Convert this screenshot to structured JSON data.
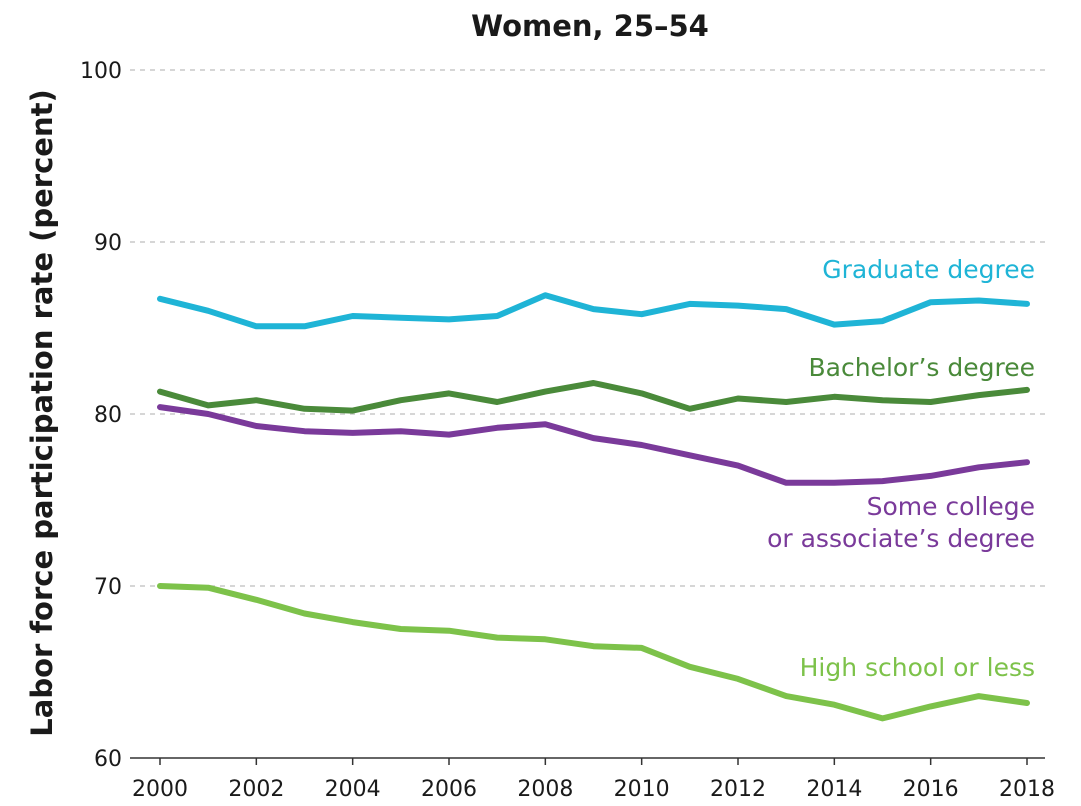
{
  "chart_data": {
    "type": "line",
    "title": "Women, 25–54",
    "xlabel": "",
    "ylabel": "Labor force participation rate (percent)",
    "ylim": [
      60,
      100
    ],
    "yticks": [
      "60",
      "70",
      "80",
      "90",
      "100"
    ],
    "xticks": [
      "2000",
      "2002",
      "2004",
      "2006",
      "2008",
      "2010",
      "2012",
      "2014",
      "2016",
      "2018"
    ],
    "grid": true,
    "x": [
      2000,
      2001,
      2002,
      2003,
      2004,
      2005,
      2006,
      2007,
      2008,
      2009,
      2010,
      2011,
      2012,
      2013,
      2014,
      2015,
      2016,
      2017,
      2018
    ],
    "series": [
      {
        "name": "Graduate degree",
        "color": "#1fb4d6",
        "values": [
          86.7,
          86.0,
          85.1,
          85.1,
          85.7,
          85.6,
          85.5,
          85.7,
          86.9,
          86.1,
          85.8,
          86.4,
          86.3,
          86.1,
          85.2,
          85.4,
          86.5,
          86.6,
          86.4
        ]
      },
      {
        "name": "Bachelor’s degree",
        "color": "#4a8a3a",
        "values": [
          81.3,
          80.5,
          80.8,
          80.3,
          80.2,
          80.8,
          81.2,
          80.7,
          81.3,
          81.8,
          81.2,
          80.3,
          80.9,
          80.7,
          81.0,
          80.8,
          80.7,
          81.1,
          81.4
        ]
      },
      {
        "name": "Some college or associate’s degree",
        "label_lines": [
          "Some college",
          "or associate’s degree"
        ],
        "color": "#7a3a9a",
        "values": [
          80.4,
          80.0,
          79.3,
          79.0,
          78.9,
          79.0,
          78.8,
          79.2,
          79.4,
          78.6,
          78.2,
          77.6,
          77.0,
          76.0,
          76.0,
          76.1,
          76.4,
          76.9,
          77.2
        ]
      },
      {
        "name": "High school or less",
        "color": "#7dc24a",
        "values": [
          70.0,
          69.9,
          69.2,
          68.4,
          67.9,
          67.5,
          67.4,
          67.0,
          66.9,
          66.5,
          66.4,
          65.3,
          64.6,
          63.6,
          63.1,
          62.3,
          63.0,
          63.6,
          63.2
        ]
      }
    ]
  }
}
